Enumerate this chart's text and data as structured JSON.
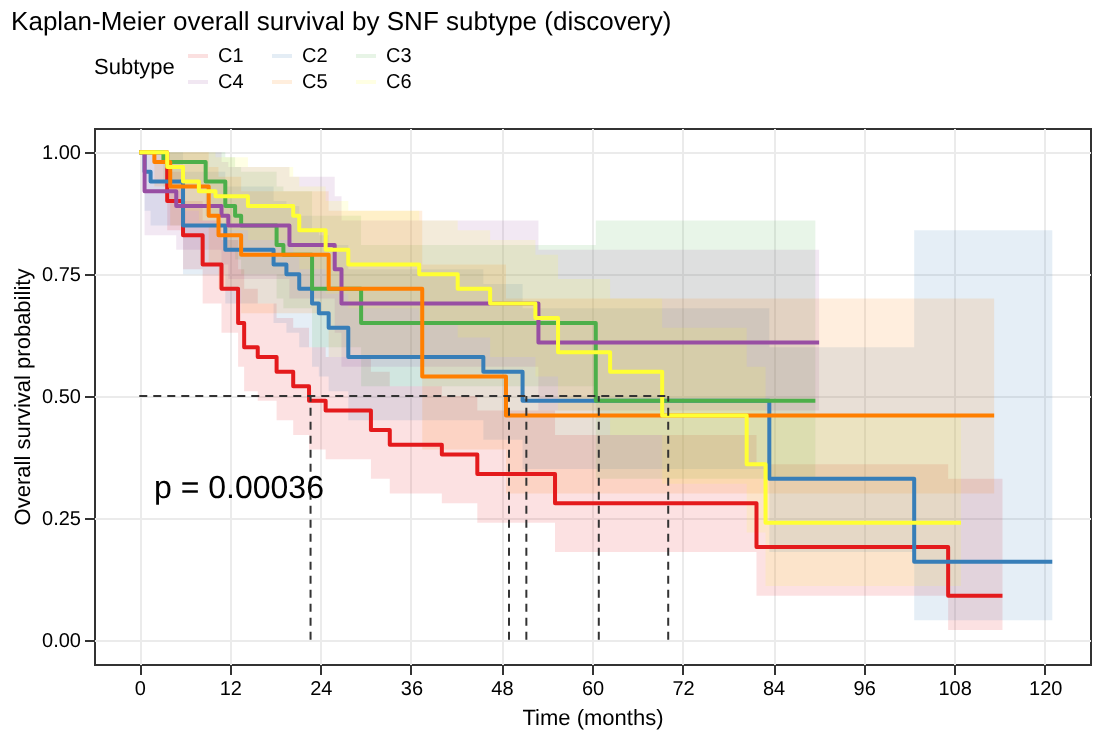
{
  "chart_data": {
    "type": "step",
    "title": "Kaplan-Meier overall survival by SNF subtype (discovery)",
    "xlabel": "Time (months)",
    "ylabel": "Overall survival probability",
    "legend_title": "Subtype",
    "annotations": [
      "p = 0.00036"
    ],
    "series": [
      {
        "name": "C1",
        "color": "#e41a1c",
        "x": [
          0,
          3.7,
          5.8,
          8.4,
          10.9,
          13.1,
          13.9,
          15.7,
          18.2,
          20.4,
          22.5,
          24.7,
          30.7,
          33.2,
          40.1,
          44.8,
          55.1,
          81.8,
          107.2,
          114.4
        ],
        "values": [
          1,
          0.9,
          0.83,
          0.77,
          0.72,
          0.65,
          0.6,
          0.58,
          0.55,
          0.52,
          0.49,
          0.47,
          0.43,
          0.4,
          0.38,
          0.34,
          0.28,
          0.19,
          0.09,
          0.09
        ],
        "lower": [
          1,
          0.84,
          0.76,
          0.69,
          0.63,
          0.56,
          0.51,
          0.49,
          0.45,
          0.42,
          0.39,
          0.37,
          0.33,
          0.3,
          0.28,
          0.24,
          0.18,
          0.09,
          0.02,
          0.02
        ],
        "upper": [
          1,
          0.96,
          0.9,
          0.86,
          0.82,
          0.76,
          0.72,
          0.69,
          0.66,
          0.64,
          0.6,
          0.58,
          0.55,
          0.52,
          0.5,
          0.47,
          0.42,
          0.36,
          0.33,
          0.33
        ]
      },
      {
        "name": "C2",
        "color": "#377eb8",
        "x": [
          0,
          0.7,
          1.5,
          5.8,
          11.4,
          17.8,
          19.5,
          21.2,
          22.9,
          23.8,
          25.1,
          27.7,
          45.6,
          50.8,
          83.5,
          102.7,
          121
        ],
        "values": [
          1,
          0.96,
          0.94,
          0.85,
          0.8,
          0.77,
          0.75,
          0.72,
          0.69,
          0.67,
          0.64,
          0.58,
          0.55,
          0.49,
          0.33,
          0.16,
          0.16
        ],
        "lower": [
          1,
          0.88,
          0.85,
          0.75,
          0.69,
          0.65,
          0.63,
          0.6,
          0.56,
          0.54,
          0.51,
          0.45,
          0.41,
          0.35,
          0.18,
          0.04,
          0.04
        ],
        "upper": [
          1,
          1,
          1,
          0.96,
          0.93,
          0.9,
          0.89,
          0.87,
          0.84,
          0.83,
          0.81,
          0.76,
          0.73,
          0.68,
          0.6,
          0.84,
          0.84
        ]
      },
      {
        "name": "C3",
        "color": "#4daf4a",
        "x": [
          0,
          3.2,
          8.8,
          11.4,
          12.7,
          13.5,
          18.2,
          19.1,
          22.9,
          29.4,
          60.5,
          89.6
        ],
        "values": [
          1,
          0.98,
          0.94,
          0.89,
          0.87,
          0.85,
          0.81,
          0.79,
          0.72,
          0.65,
          0.49,
          0.49
        ],
        "lower": [
          1,
          0.93,
          0.87,
          0.8,
          0.78,
          0.75,
          0.7,
          0.68,
          0.6,
          0.52,
          0.33,
          0.33
        ],
        "upper": [
          1,
          1,
          1,
          0.99,
          0.97,
          0.96,
          0.93,
          0.92,
          0.87,
          0.81,
          0.86,
          0.86
        ]
      },
      {
        "name": "C4",
        "color": "#984ea3",
        "x": [
          0,
          0.7,
          4.9,
          10.9,
          11.8,
          19.9,
          25.9,
          26.8,
          52.9,
          90.1
        ],
        "values": [
          1,
          0.92,
          0.89,
          0.87,
          0.85,
          0.81,
          0.76,
          0.69,
          0.61,
          0.61
        ],
        "lower": [
          1,
          0.83,
          0.8,
          0.77,
          0.74,
          0.7,
          0.63,
          0.56,
          0.47,
          0.47
        ],
        "upper": [
          1,
          1,
          1,
          0.98,
          0.97,
          0.95,
          0.91,
          0.86,
          0.8,
          0.8
        ]
      },
      {
        "name": "C5",
        "color": "#ff7f00",
        "x": [
          0,
          2.0,
          4.1,
          9.2,
          10.5,
          13.5,
          25.1,
          37.5,
          48.6,
          113.3
        ],
        "values": [
          1,
          0.98,
          0.93,
          0.87,
          0.83,
          0.79,
          0.72,
          0.54,
          0.46,
          0.46
        ],
        "lower": [
          1,
          0.93,
          0.85,
          0.77,
          0.72,
          0.67,
          0.58,
          0.39,
          0.3,
          0.3
        ],
        "upper": [
          1,
          1,
          1,
          0.97,
          0.95,
          0.92,
          0.88,
          0.77,
          0.7,
          0.7
        ]
      },
      {
        "name": "C6",
        "color": "#ffff33",
        "x": [
          0,
          3.7,
          5.8,
          7.9,
          10.1,
          14.4,
          20.4,
          21.2,
          24.7,
          27.7,
          37.1,
          42.2,
          46.5,
          52.5,
          55.5,
          62.4,
          69.3,
          80.5,
          83,
          108.9
        ],
        "values": [
          1,
          0.97,
          0.94,
          0.92,
          0.91,
          0.89,
          0.87,
          0.84,
          0.8,
          0.77,
          0.75,
          0.72,
          0.69,
          0.66,
          0.59,
          0.55,
          0.46,
          0.36,
          0.24,
          0.24
        ],
        "lower": [
          1,
          0.92,
          0.88,
          0.86,
          0.84,
          0.82,
          0.79,
          0.76,
          0.71,
          0.68,
          0.65,
          0.62,
          0.58,
          0.54,
          0.47,
          0.42,
          0.32,
          0.22,
          0.11,
          0.11
        ],
        "upper": [
          1,
          1,
          1,
          1,
          0.99,
          0.97,
          0.95,
          0.93,
          0.9,
          0.88,
          0.86,
          0.84,
          0.82,
          0.79,
          0.74,
          0.7,
          0.64,
          0.56,
          0.46,
          0.46
        ]
      }
    ],
    "xlim": [
      -6,
      126
    ],
    "xticks": [
      0,
      12,
      24,
      36,
      48,
      60,
      72,
      84,
      96,
      108,
      120
    ],
    "ylim": [
      -0.05,
      1.05
    ],
    "yticks": [
      {
        "value": 0,
        "label": "0.00"
      },
      {
        "value": 0.25,
        "label": "0.25"
      },
      {
        "value": 0.5,
        "label": "0.50"
      },
      {
        "value": 0.75,
        "label": "0.75"
      },
      {
        "value": 1,
        "label": "1.00"
      }
    ],
    "ref_lines": [
      {
        "axis": "y",
        "value": 0.5,
        "line_style": "dashed"
      },
      {
        "axis": "x",
        "value": 22.7,
        "line_style": "dashed"
      },
      {
        "axis": "x",
        "value": 49.0,
        "line_style": "dashed"
      },
      {
        "axis": "x",
        "value": 51.3,
        "line_style": "dashed"
      },
      {
        "axis": "x",
        "value": 60.9,
        "line_style": "dashed"
      },
      {
        "axis": "x",
        "value": 70.1,
        "line_style": "dashed"
      }
    ],
    "grid": true,
    "legend": "top",
    "line_style": "solid"
  }
}
